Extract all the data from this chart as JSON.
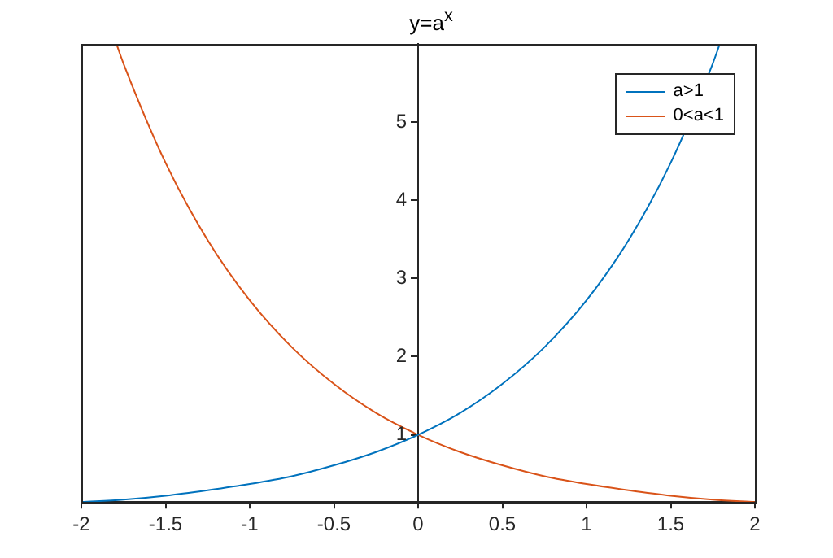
{
  "chart_data": {
    "type": "line",
    "title": "y=a$^{x}$",
    "series": [
      {
        "name": "a>1",
        "color": "#0072bd",
        "x": [
          -2,
          -1.75,
          -1.5,
          -1.25,
          -1,
          -0.75,
          -0.5,
          -0.25,
          0,
          0.25,
          0.5,
          0.75,
          1,
          1.25,
          1.5,
          1.75,
          1.79
        ],
        "values": [
          0.14,
          0.17,
          0.22,
          0.29,
          0.37,
          0.47,
          0.61,
          0.78,
          1,
          1.28,
          1.65,
          2.12,
          2.72,
          3.49,
          4.48,
          5.75,
          5.99
        ]
      },
      {
        "name": "0<a<1",
        "color": "#d95319",
        "x": [
          -1.79,
          -1.75,
          -1.5,
          -1.25,
          -1,
          -0.75,
          -0.5,
          -0.25,
          0,
          0.25,
          0.5,
          0.75,
          1,
          1.25,
          1.5,
          1.75,
          2
        ],
        "values": [
          5.99,
          5.75,
          4.48,
          3.49,
          2.72,
          2.12,
          1.65,
          1.28,
          1,
          0.78,
          0.61,
          0.47,
          0.37,
          0.29,
          0.22,
          0.17,
          0.14
        ]
      }
    ],
    "xlim": [
      -2,
      2
    ],
    "xticks": [
      -2,
      -1.5,
      -1,
      -0.5,
      0,
      0.5,
      1,
      1.5,
      2
    ],
    "ylim": [
      0.14,
      6
    ],
    "yticks": [
      1,
      2,
      3,
      4,
      5
    ],
    "grid": false,
    "legend": "top right",
    "marker": "none",
    "line_style": "solid"
  }
}
